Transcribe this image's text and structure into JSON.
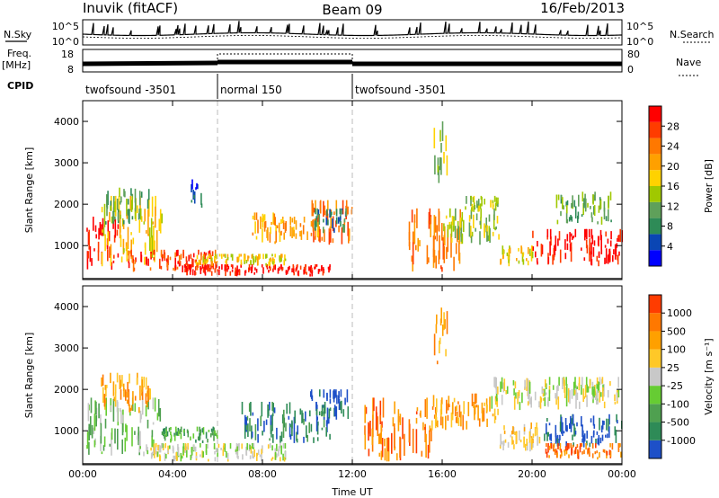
{
  "header": {
    "station": "Inuvik (fitACF)",
    "beam": "Beam 09",
    "date": "16/Feb/2013"
  },
  "strip_labels": {
    "nsky": "N.Sky",
    "nsearch": "N.Search",
    "freq_top": "Freq.",
    "freq_unit": "[MHz]",
    "nave": "Nave",
    "cpid": "CPID"
  },
  "strip_ticks": {
    "noise_left": [
      "10^5",
      "10^0"
    ],
    "noise_right": [
      "10^5",
      "10^0"
    ],
    "freq_left": [
      "18",
      "8"
    ],
    "nave_right": [
      "80",
      "0"
    ]
  },
  "cpid_segments": [
    {
      "label": "twofsound -3501",
      "start_h": 0,
      "end_h": 6
    },
    {
      "label": "normal 150",
      "start_h": 6,
      "end_h": 12
    },
    {
      "label": "twofsound -3501",
      "start_h": 12,
      "end_h": 24
    }
  ],
  "chart_data": [
    {
      "type": "heatmap",
      "name": "power",
      "ylabel": "Slant Range [km]",
      "ylim": [
        180,
        4500
      ],
      "xlim": [
        0,
        24
      ],
      "x_ticks": [
        "00:00",
        "04:00",
        "08:00",
        "12:00",
        "16:00",
        "20:00",
        "00:00"
      ],
      "y_ticks": [
        "1000",
        "2000",
        "3000",
        "4000"
      ],
      "colorbar": {
        "label": "Power [dB]",
        "tick_labels": [
          "4",
          "8",
          "12",
          "16",
          "20",
          "24",
          "28"
        ],
        "colors": [
          "#0000ff",
          "#0a46b4",
          "#2e8b57",
          "#5fa05a",
          "#a0c800",
          "#ffd200",
          "#ffa000",
          "#ff7800",
          "#ff3c00",
          "#ff0000"
        ]
      },
      "regions": [
        {
          "t0": 0.1,
          "t1": 1.6,
          "r0": 400,
          "r1": 1700,
          "level": 9
        },
        {
          "t0": 0.8,
          "t1": 3.5,
          "r0": 500,
          "r1": 2200,
          "level": 5
        },
        {
          "t0": 1.0,
          "t1": 3.0,
          "r0": 1500,
          "r1": 2400,
          "level": 3
        },
        {
          "t0": 2.0,
          "t1": 6.0,
          "r0": 350,
          "r1": 900,
          "level": 8
        },
        {
          "t0": 4.5,
          "t1": 11.0,
          "r0": 250,
          "r1": 550,
          "level": 9
        },
        {
          "t0": 5.0,
          "t1": 9.0,
          "r0": 500,
          "r1": 800,
          "level": 5
        },
        {
          "t0": 7.5,
          "t1": 8.8,
          "r0": 1000,
          "r1": 1800,
          "level": 6
        },
        {
          "t0": 8.8,
          "t1": 10.5,
          "r0": 1100,
          "r1": 1700,
          "level": 6
        },
        {
          "t0": 10.0,
          "t1": 12.0,
          "r0": 1000,
          "r1": 2100,
          "level": 7
        },
        {
          "t0": 10.3,
          "t1": 11.8,
          "r0": 1300,
          "r1": 1900,
          "level": 2
        },
        {
          "t0": 14.5,
          "t1": 16.8,
          "r0": 350,
          "r1": 1900,
          "level": 7
        },
        {
          "t0": 16.0,
          "t1": 18.5,
          "r0": 1000,
          "r1": 1900,
          "level": 4
        },
        {
          "t0": 17.0,
          "t1": 18.5,
          "r0": 1800,
          "r1": 2200,
          "level": 4
        },
        {
          "t0": 18.5,
          "t1": 20.0,
          "r0": 500,
          "r1": 1000,
          "level": 5
        },
        {
          "t0": 20.0,
          "t1": 24.0,
          "r0": 500,
          "r1": 1400,
          "level": 9
        },
        {
          "t0": 21.0,
          "t1": 23.5,
          "r0": 1500,
          "r1": 2300,
          "level": 3
        },
        {
          "t0": 15.6,
          "t1": 16.2,
          "r0": 2500,
          "r1": 4000,
          "level": 4
        },
        {
          "t0": 4.8,
          "t1": 5.3,
          "r0": 1900,
          "r1": 2600,
          "level": 1
        }
      ]
    },
    {
      "type": "heatmap",
      "name": "velocity",
      "ylabel": "Slant Range [km]",
      "xlabel": "Time UT",
      "ylim": [
        180,
        4500
      ],
      "xlim": [
        0,
        24
      ],
      "x_ticks": [
        "00:00",
        "04:00",
        "08:00",
        "12:00",
        "16:00",
        "20:00",
        "00:00"
      ],
      "y_ticks": [
        "1000",
        "2000",
        "3000",
        "4000"
      ],
      "colorbar": {
        "label": "Velocity [m s⁻¹]",
        "tick_labels": [
          "1000",
          "500",
          "100",
          "25",
          "-25",
          "-100",
          "-500",
          "-1000"
        ],
        "colors": [
          "#1e50c8",
          "#2e8b57",
          "#4fa050",
          "#66cc33",
          "#c8c8c8",
          "#ffc828",
          "#ffa000",
          "#ff7800",
          "#ff3c00"
        ]
      },
      "regions": [
        {
          "t0": 0.1,
          "t1": 3.5,
          "r0": 400,
          "r1": 1800,
          "level": 3
        },
        {
          "t0": 0.8,
          "t1": 3.0,
          "r0": 1400,
          "r1": 2400,
          "level": 6
        },
        {
          "t0": 2.5,
          "t1": 9.0,
          "r0": 250,
          "r1": 700,
          "level": 4
        },
        {
          "t0": 3.5,
          "t1": 6.0,
          "r0": 700,
          "r1": 1100,
          "level": 2
        },
        {
          "t0": 7.0,
          "t1": 11.0,
          "r0": 700,
          "r1": 1700,
          "level": 1
        },
        {
          "t0": 10.0,
          "t1": 11.8,
          "r0": 1200,
          "r1": 2000,
          "level": 0
        },
        {
          "t0": 12.5,
          "t1": 15.5,
          "r0": 250,
          "r1": 1800,
          "level": 7
        },
        {
          "t0": 15.5,
          "t1": 18.5,
          "r0": 1000,
          "r1": 1900,
          "level": 6
        },
        {
          "t0": 18.5,
          "t1": 20.5,
          "r0": 500,
          "r1": 1200,
          "level": 5
        },
        {
          "t0": 20.5,
          "t1": 24.0,
          "r0": 600,
          "r1": 1400,
          "level": 0
        },
        {
          "t0": 20.5,
          "t1": 24.0,
          "r0": 300,
          "r1": 700,
          "level": 7
        },
        {
          "t0": 18.0,
          "t1": 24.0,
          "r0": 1500,
          "r1": 2300,
          "level": 4
        },
        {
          "t0": 15.6,
          "t1": 16.2,
          "r0": 2500,
          "r1": 4000,
          "level": 6
        }
      ]
    }
  ]
}
